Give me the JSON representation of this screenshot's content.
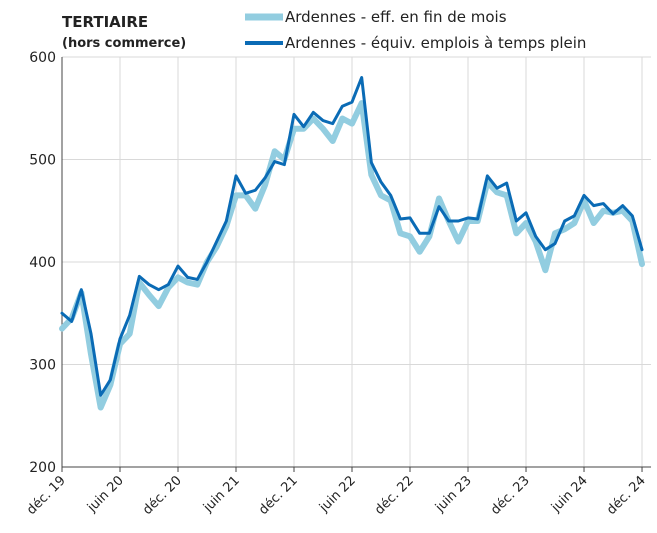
{
  "chart_data": {
    "type": "line",
    "title": "TERTIAIRE",
    "subtitle": "(hors commerce)",
    "categories": [
      "déc. 19",
      null,
      null,
      null,
      null,
      null,
      "juin 20",
      null,
      null,
      null,
      null,
      null,
      "déc. 20",
      null,
      null,
      null,
      null,
      null,
      "juin 21",
      null,
      null,
      null,
      null,
      null,
      "déc. 21",
      null,
      null,
      null,
      null,
      null,
      "juin 22",
      null,
      null,
      null,
      null,
      null,
      "déc. 22",
      null,
      null,
      null,
      null,
      null,
      "juin 23",
      null,
      null,
      null,
      null,
      null,
      "déc. 23",
      null,
      null,
      null,
      null,
      null,
      "juin 24",
      null,
      null,
      null,
      null,
      null,
      "déc. 24"
    ],
    "series": [
      {
        "name": "Ardennes - eff. en fin de mois",
        "color": "#92cde0",
        "width": 6,
        "values": [
          335,
          345,
          370,
          310,
          258,
          280,
          320,
          330,
          380,
          368,
          357,
          375,
          385,
          380,
          378,
          400,
          415,
          435,
          465,
          465,
          452,
          475,
          508,
          500,
          530,
          530,
          540,
          530,
          518,
          540,
          535,
          555,
          485,
          465,
          460,
          428,
          425,
          410,
          425,
          462,
          440,
          420,
          440,
          440,
          478,
          468,
          465,
          428,
          438,
          420,
          392,
          428,
          432,
          438,
          460,
          438,
          450,
          448,
          450,
          440,
          398
        ]
      },
      {
        "name": "Ardennes - équiv. emplois à temps plein",
        "color": "#0a6bb5",
        "width": 3,
        "values": [
          350,
          342,
          373,
          330,
          270,
          285,
          325,
          348,
          386,
          378,
          373,
          378,
          396,
          385,
          383,
          400,
          420,
          440,
          484,
          467,
          470,
          482,
          498,
          495,
          544,
          532,
          546,
          538,
          535,
          552,
          556,
          580,
          497,
          478,
          465,
          442,
          443,
          428,
          428,
          454,
          440,
          440,
          443,
          442,
          484,
          472,
          477,
          440,
          448,
          425,
          412,
          418,
          440,
          445,
          465,
          455,
          457,
          447,
          455,
          445,
          412
        ]
      }
    ],
    "ylim": [
      200,
      600
    ],
    "yticks": [
      200,
      300,
      400,
      500,
      600
    ],
    "grid": true
  }
}
